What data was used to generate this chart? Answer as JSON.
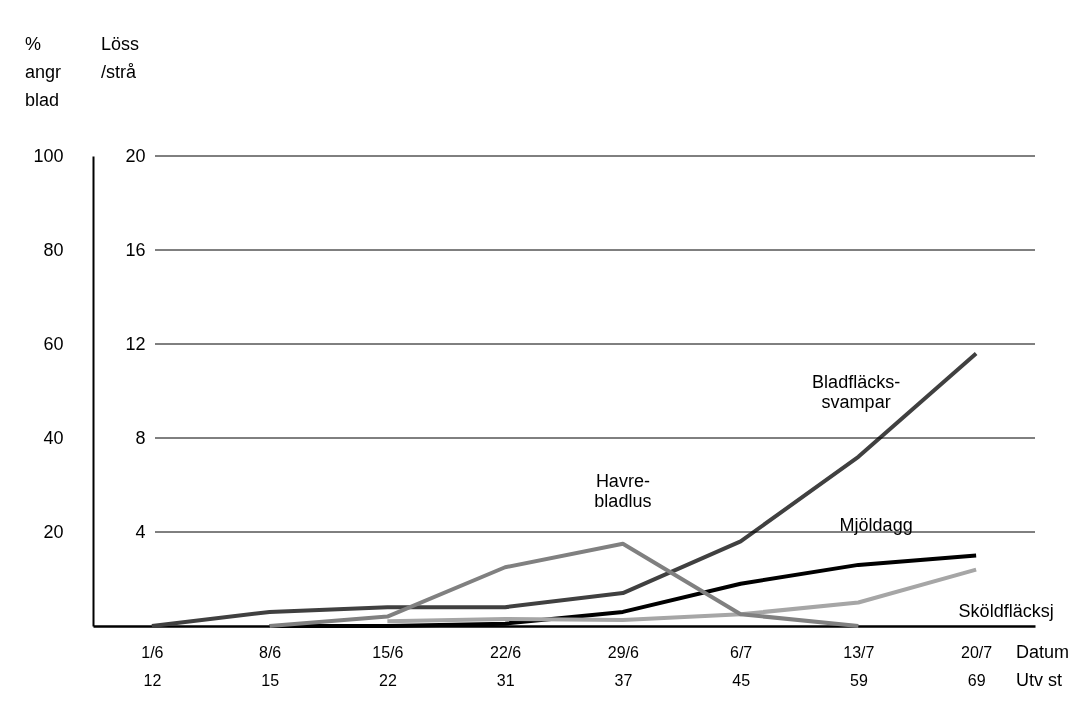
{
  "chart_data": {
    "type": "line",
    "categories": [
      "1/6\n12",
      "8/6\n15",
      "15/6\n22",
      "22/6\n31",
      "29/6\n37",
      "6/7\n45",
      "13/7\n59",
      "20/7\n69"
    ],
    "xlabel": "Datum\nUtv st",
    "ylabel": "% angr blad",
    "y2label": "Löss /strå",
    "ylim": [
      0,
      100
    ],
    "yticks": [
      20,
      40,
      60,
      80,
      100
    ],
    "y2lim": [
      0,
      20
    ],
    "y2ticks": [
      4,
      8,
      12,
      16,
      20
    ],
    "grid": "y2",
    "series": [
      {
        "name": "Bladfläcks-\nsvampar",
        "color": "#404040",
        "values": [
          0,
          3,
          4,
          4,
          7,
          18,
          36,
          58
        ]
      },
      {
        "name": "Havre-\nbladlus",
        "color": "#808080",
        "axis": "y2",
        "values": [
          null,
          0,
          0.4,
          2.5,
          3.5,
          0.5,
          0,
          null
        ]
      },
      {
        "name": "Mjöldagg",
        "color": "#000000",
        "values": [
          null,
          0,
          0,
          0.5,
          3,
          9,
          13,
          15
        ]
      },
      {
        "name": "Sköldfläcksj",
        "color": "#a6a6a6",
        "values": [
          null,
          null,
          1,
          1.5,
          1.3,
          2.5,
          5,
          12
        ]
      }
    ]
  }
}
